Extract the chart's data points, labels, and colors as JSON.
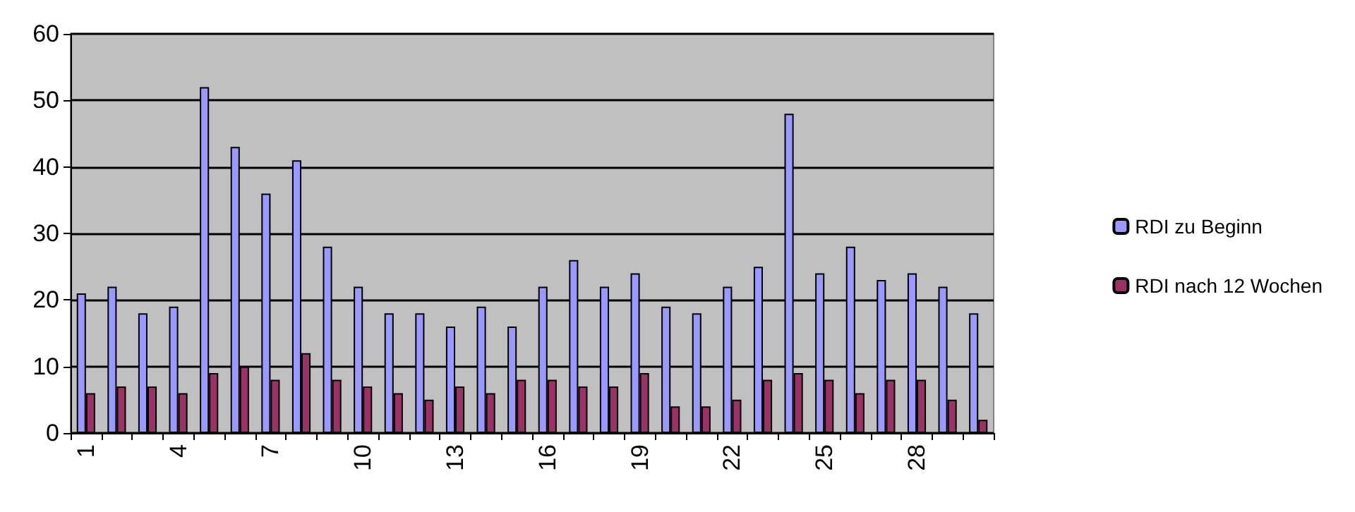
{
  "chart_data": {
    "type": "bar",
    "categories": [
      "1",
      null,
      null,
      "4",
      null,
      null,
      "7",
      null,
      null,
      "10",
      null,
      null,
      "13",
      null,
      null,
      "16",
      null,
      null,
      "19",
      null,
      null,
      "22",
      null,
      null,
      "25",
      null,
      null,
      "28",
      null,
      null
    ],
    "series": [
      {
        "name": "RDI zu Beginn",
        "color": "#9999ff",
        "values": [
          21,
          22,
          18,
          19,
          52,
          43,
          36,
          41,
          28,
          22,
          18,
          18,
          16,
          19,
          16,
          22,
          26,
          22,
          24,
          19,
          18,
          22,
          25,
          48,
          24,
          28,
          23,
          24,
          22,
          18
        ]
      },
      {
        "name": "RDI nach 12 Wochen",
        "color": "#993366",
        "values": [
          6,
          7,
          7,
          6,
          9,
          10,
          8,
          12,
          8,
          7,
          6,
          5,
          7,
          6,
          8,
          8,
          7,
          7,
          9,
          4,
          4,
          5,
          8,
          9,
          8,
          6,
          8,
          8,
          5,
          2
        ]
      }
    ],
    "ylim": [
      0,
      60
    ],
    "yticks": [
      0,
      10,
      20,
      30,
      40,
      50,
      60
    ],
    "grid": "y",
    "legend": "right"
  }
}
